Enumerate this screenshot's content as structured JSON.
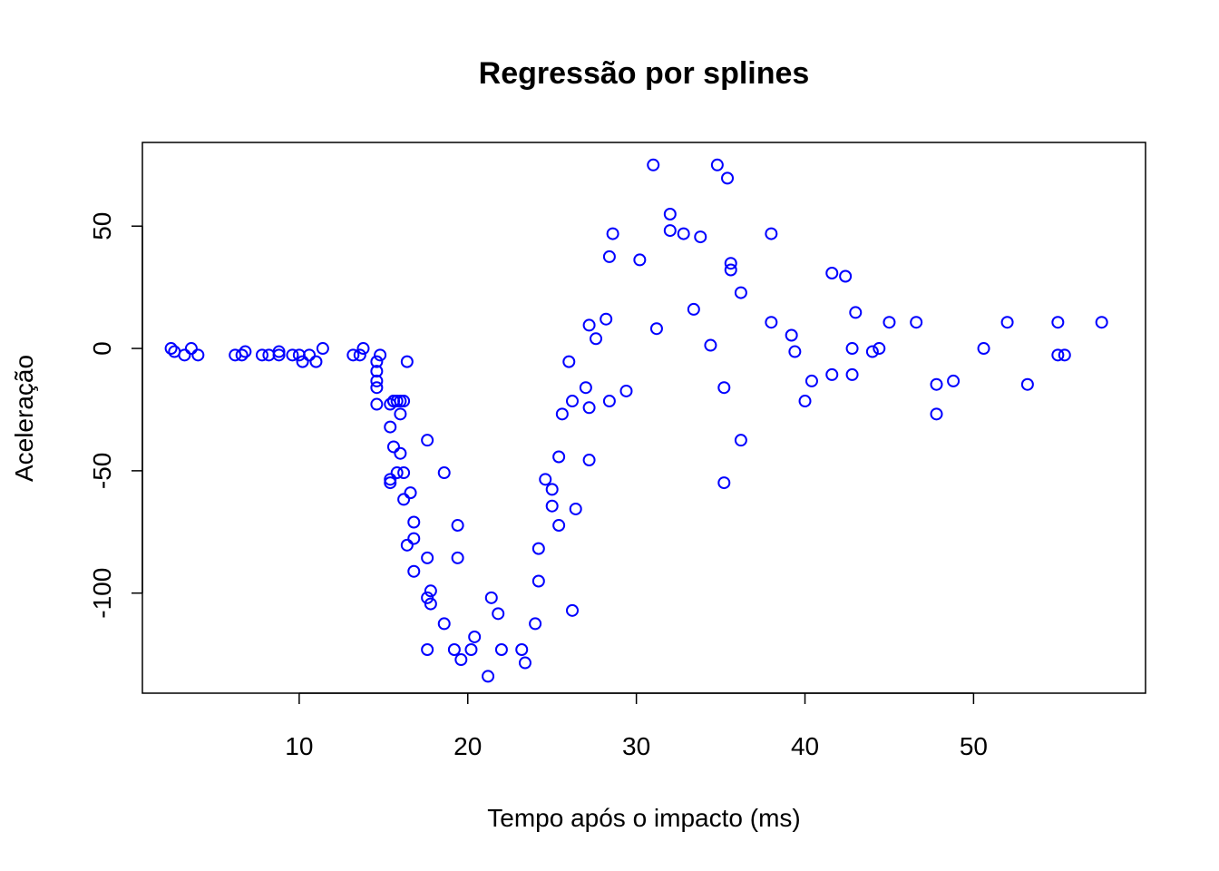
{
  "chart_data": {
    "type": "scatter",
    "title": "Regressão por splines",
    "xlabel": "Tempo após o impacto (ms)",
    "ylabel": "Aceleração",
    "xlim": [
      0.7,
      60.2
    ],
    "ylim": [
      -140.9,
      84.2
    ],
    "xticks": [
      10,
      20,
      30,
      40,
      50
    ],
    "yticks": [
      -100,
      -50,
      0,
      50
    ],
    "point_color": "#0000ff",
    "grid": false,
    "x": [
      2.4,
      2.6,
      3.2,
      3.6,
      4.0,
      6.2,
      6.6,
      6.8,
      7.8,
      8.2,
      8.8,
      8.8,
      9.6,
      10.0,
      10.2,
      10.6,
      11.0,
      11.4,
      13.2,
      13.6,
      13.8,
      14.6,
      14.6,
      14.6,
      14.6,
      14.6,
      14.8,
      15.4,
      15.4,
      15.4,
      15.4,
      15.6,
      15.6,
      15.6,
      15.8,
      15.8,
      16.0,
      16.0,
      16.0,
      16.2,
      16.2,
      16.2,
      16.4,
      16.4,
      16.6,
      16.8,
      16.8,
      16.8,
      17.6,
      17.6,
      17.6,
      17.6,
      17.8,
      17.8,
      18.6,
      18.6,
      19.2,
      19.4,
      19.4,
      19.6,
      20.2,
      20.4,
      21.2,
      21.4,
      21.8,
      22.0,
      23.2,
      23.4,
      24.0,
      24.2,
      24.2,
      24.6,
      25.0,
      25.0,
      25.4,
      25.4,
      25.6,
      26.0,
      26.2,
      26.2,
      26.4,
      27.0,
      27.2,
      27.2,
      27.2,
      27.6,
      28.2,
      28.4,
      28.4,
      28.6,
      29.4,
      30.2,
      31.0,
      31.2,
      32.0,
      32.0,
      32.8,
      33.4,
      33.8,
      34.4,
      34.8,
      35.2,
      35.2,
      35.4,
      35.6,
      35.6,
      36.2,
      36.2,
      38.0,
      38.0,
      39.2,
      39.4,
      40.0,
      40.4,
      41.6,
      41.6,
      42.4,
      42.8,
      42.8,
      43.0,
      44.0,
      44.4,
      45.0,
      46.6,
      47.8,
      47.8,
      48.8,
      50.6,
      52.0,
      53.2,
      55.0,
      55.0,
      55.4,
      57.6
    ],
    "y": [
      0,
      -1.3,
      -2.7,
      0,
      -2.7,
      -2.7,
      -2.7,
      -1.3,
      -2.7,
      -2.7,
      -1.3,
      -2.7,
      -2.7,
      -2.7,
      -5.4,
      -2.7,
      -5.4,
      0,
      -2.7,
      -2.7,
      0,
      -5.4,
      -9.3,
      -13.3,
      -16.0,
      -22.8,
      -2.7,
      -22.8,
      -32.1,
      -53.5,
      -54.9,
      -21.5,
      -40.2,
      -21.5,
      -50.8,
      -21.5,
      -42.9,
      -26.8,
      -21.5,
      -50.8,
      -61.7,
      -21.5,
      -5.4,
      -80.4,
      -59.0,
      -71.0,
      -91.1,
      -77.7,
      -37.5,
      -85.6,
      -101.9,
      -123.1,
      -99.1,
      -104.4,
      -50.8,
      -112.5,
      -123.1,
      -72.3,
      -85.6,
      -127.2,
      -123.1,
      -117.9,
      -134.0,
      -101.9,
      -108.4,
      -123.1,
      -123.1,
      -128.5,
      -112.5,
      -95.1,
      -81.8,
      -53.5,
      -64.4,
      -57.6,
      -72.3,
      -44.3,
      -26.8,
      -5.4,
      -21.5,
      -107.1,
      -65.6,
      -16.0,
      -45.6,
      -24.2,
      9.5,
      4.0,
      12.0,
      -21.5,
      37.5,
      46.9,
      -17.4,
      36.2,
      75.0,
      8.1,
      54.9,
      48.2,
      46.9,
      16.0,
      45.6,
      1.3,
      75.0,
      -16.0,
      -54.9,
      69.6,
      34.8,
      32.1,
      -37.5,
      22.8,
      46.9,
      10.7,
      5.4,
      -1.3,
      -21.5,
      -13.3,
      30.8,
      -10.7,
      29.5,
      0,
      -10.7,
      14.7,
      -1.3,
      0,
      10.7,
      10.7,
      -26.8,
      -14.7,
      -13.3,
      0,
      10.7,
      -14.7,
      -2.7,
      10.7,
      -2.7,
      10.7
    ]
  }
}
